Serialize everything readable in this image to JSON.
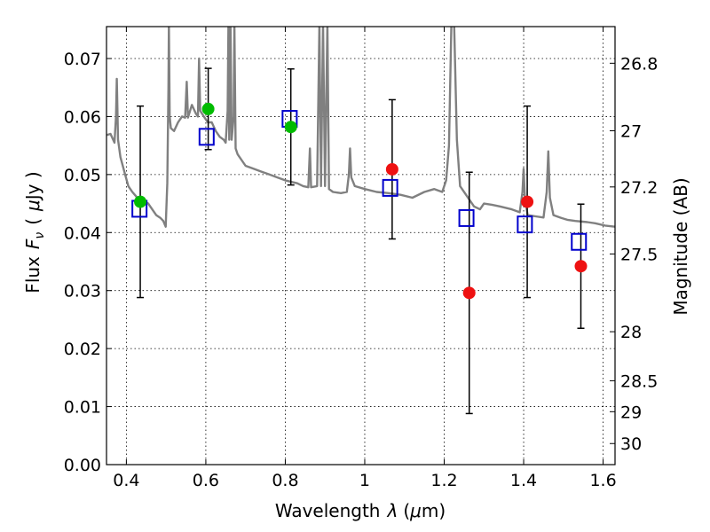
{
  "chart_data": {
    "type": "scatter",
    "xlabel_text": "Wavelength",
    "xlabel_symbol": "λ",
    "xlabel_unit_open": "(",
    "xlabel_unit_mu": "μ",
    "xlabel_unit_rest": "m)",
    "ylabel_text": "Flux",
    "ylabel_symbol": "F",
    "ylabel_sub": "ν",
    "ylabel_unit_open": "(",
    "ylabel_unit_mu": "μ",
    "ylabel_unit_rest": "Jy )",
    "y2label": "Magnitude (AB)",
    "xlim": [
      0.35,
      1.63
    ],
    "ylim": [
      0.0,
      0.0755
    ],
    "grid": true,
    "x_ticks": [
      {
        "v": 0.4,
        "label": "0.4"
      },
      {
        "v": 0.6,
        "label": "0.6"
      },
      {
        "v": 0.8,
        "label": "0.8"
      },
      {
        "v": 1.0,
        "label": "1"
      },
      {
        "v": 1.2,
        "label": "1.2"
      },
      {
        "v": 1.4,
        "label": "1.4"
      },
      {
        "v": 1.6,
        "label": "1.6"
      }
    ],
    "y_ticks": [
      {
        "v": 0.0,
        "label": "0.00"
      },
      {
        "v": 0.01,
        "label": "0.01"
      },
      {
        "v": 0.02,
        "label": "0.02"
      },
      {
        "v": 0.03,
        "label": "0.03"
      },
      {
        "v": 0.04,
        "label": "0.04"
      },
      {
        "v": 0.05,
        "label": "0.05"
      },
      {
        "v": 0.06,
        "label": "0.06"
      },
      {
        "v": 0.07,
        "label": "0.07"
      }
    ],
    "y2_ticks": [
      {
        "v": 26.8,
        "label": "26.8"
      },
      {
        "v": 27.0,
        "label": "27"
      },
      {
        "v": 27.2,
        "label": "27.2"
      },
      {
        "v": 27.5,
        "label": "27.5"
      },
      {
        "v": 28.0,
        "label": "28"
      },
      {
        "v": 28.5,
        "label": "28.5"
      },
      {
        "v": 29.0,
        "label": "29"
      },
      {
        "v": 30.0,
        "label": "30"
      }
    ],
    "colors": {
      "spectrum": "#808080",
      "model": "#0000cc",
      "green": "#00bb00",
      "red": "#ee1111",
      "errorbar": "#000000"
    },
    "series": [
      {
        "kind": "observed-green",
        "points": [
          {
            "x": 0.435,
            "y": 0.0453,
            "err": 0.0165
          },
          {
            "x": 0.606,
            "y": 0.0613,
            "err": 0.007
          },
          {
            "x": 0.814,
            "y": 0.0582,
            "err": 0.01
          }
        ]
      },
      {
        "kind": "observed-red",
        "points": [
          {
            "x": 1.069,
            "y": 0.0509,
            "err": 0.012
          },
          {
            "x": 1.263,
            "y": 0.0296,
            "err": 0.0208
          },
          {
            "x": 1.409,
            "y": 0.0453,
            "err": 0.0165
          },
          {
            "x": 1.544,
            "y": 0.0342,
            "err": 0.0107
          }
        ]
      },
      {
        "kind": "model-squares",
        "points": [
          {
            "x": 0.433,
            "y": 0.0441
          },
          {
            "x": 0.602,
            "y": 0.0565
          },
          {
            "x": 0.811,
            "y": 0.0596
          },
          {
            "x": 1.064,
            "y": 0.0477
          },
          {
            "x": 1.256,
            "y": 0.0425
          },
          {
            "x": 1.403,
            "y": 0.0414
          },
          {
            "x": 1.539,
            "y": 0.0384
          }
        ]
      }
    ],
    "spectrum": [
      [
        0.35,
        0.0568
      ],
      [
        0.36,
        0.057
      ],
      [
        0.37,
        0.0555
      ],
      [
        0.374,
        0.06
      ],
      [
        0.376,
        0.0665
      ],
      [
        0.379,
        0.056
      ],
      [
        0.385,
        0.053
      ],
      [
        0.395,
        0.0505
      ],
      [
        0.405,
        0.048
      ],
      [
        0.415,
        0.047
      ],
      [
        0.425,
        0.0462
      ],
      [
        0.436,
        0.0448
      ],
      [
        0.445,
        0.0455
      ],
      [
        0.455,
        0.045
      ],
      [
        0.465,
        0.044
      ],
      [
        0.475,
        0.043
      ],
      [
        0.486,
        0.0425
      ],
      [
        0.493,
        0.042
      ],
      [
        0.499,
        0.041
      ],
      [
        0.503,
        0.0485
      ],
      [
        0.506,
        0.065
      ],
      [
        0.507,
        0.076
      ],
      [
        0.509,
        0.06
      ],
      [
        0.512,
        0.058
      ],
      [
        0.52,
        0.0575
      ],
      [
        0.53,
        0.059
      ],
      [
        0.54,
        0.06
      ],
      [
        0.548,
        0.0598
      ],
      [
        0.552,
        0.066
      ],
      [
        0.555,
        0.0598
      ],
      [
        0.565,
        0.062
      ],
      [
        0.575,
        0.0605
      ],
      [
        0.58,
        0.06
      ],
      [
        0.583,
        0.07
      ],
      [
        0.586,
        0.061
      ],
      [
        0.595,
        0.06
      ],
      [
        0.605,
        0.059
      ],
      [
        0.615,
        0.059
      ],
      [
        0.625,
        0.0575
      ],
      [
        0.635,
        0.0565
      ],
      [
        0.645,
        0.056
      ],
      [
        0.65,
        0.0555
      ],
      [
        0.655,
        0.061
      ],
      [
        0.657,
        0.076
      ],
      [
        0.659,
        0.056
      ],
      [
        0.662,
        0.076
      ],
      [
        0.665,
        0.056
      ],
      [
        0.67,
        0.06
      ],
      [
        0.672,
        0.076
      ],
      [
        0.675,
        0.0545
      ],
      [
        0.68,
        0.0535
      ],
      [
        0.69,
        0.0525
      ],
      [
        0.7,
        0.0515
      ],
      [
        0.72,
        0.051
      ],
      [
        0.74,
        0.0505
      ],
      [
        0.76,
        0.05
      ],
      [
        0.78,
        0.0495
      ],
      [
        0.8,
        0.049
      ],
      [
        0.83,
        0.0485
      ],
      [
        0.845,
        0.048
      ],
      [
        0.858,
        0.0478
      ],
      [
        0.862,
        0.0545
      ],
      [
        0.865,
        0.0478
      ],
      [
        0.88,
        0.048
      ],
      [
        0.886,
        0.076
      ],
      [
        0.89,
        0.048
      ],
      [
        0.895,
        0.076
      ],
      [
        0.9,
        0.048
      ],
      [
        0.906,
        0.076
      ],
      [
        0.91,
        0.0475
      ],
      [
        0.92,
        0.047
      ],
      [
        0.94,
        0.0468
      ],
      [
        0.955,
        0.047
      ],
      [
        0.96,
        0.05
      ],
      [
        0.963,
        0.0545
      ],
      [
        0.966,
        0.0495
      ],
      [
        0.975,
        0.048
      ],
      [
        1.0,
        0.0475
      ],
      [
        1.03,
        0.047
      ],
      [
        1.06,
        0.0468
      ],
      [
        1.09,
        0.0465
      ],
      [
        1.12,
        0.046
      ],
      [
        1.15,
        0.047
      ],
      [
        1.175,
        0.0475
      ],
      [
        1.195,
        0.047
      ],
      [
        1.205,
        0.049
      ],
      [
        1.212,
        0.055
      ],
      [
        1.218,
        0.076
      ],
      [
        1.225,
        0.076
      ],
      [
        1.232,
        0.056
      ],
      [
        1.24,
        0.048
      ],
      [
        1.255,
        0.0465
      ],
      [
        1.275,
        0.0445
      ],
      [
        1.29,
        0.044
      ],
      [
        1.3,
        0.045
      ],
      [
        1.32,
        0.0448
      ],
      [
        1.34,
        0.0445
      ],
      [
        1.37,
        0.044
      ],
      [
        1.39,
        0.0435
      ],
      [
        1.397,
        0.047
      ],
      [
        1.4,
        0.051
      ],
      [
        1.403,
        0.046
      ],
      [
        1.41,
        0.043
      ],
      [
        1.43,
        0.0428
      ],
      [
        1.45,
        0.0426
      ],
      [
        1.458,
        0.047
      ],
      [
        1.462,
        0.054
      ],
      [
        1.466,
        0.046
      ],
      [
        1.475,
        0.043
      ],
      [
        1.495,
        0.0425
      ],
      [
        1.51,
        0.0422
      ],
      [
        1.53,
        0.042
      ],
      [
        1.56,
        0.0418
      ],
      [
        1.58,
        0.0416
      ],
      [
        1.605,
        0.0412
      ],
      [
        1.63,
        0.041
      ]
    ]
  }
}
